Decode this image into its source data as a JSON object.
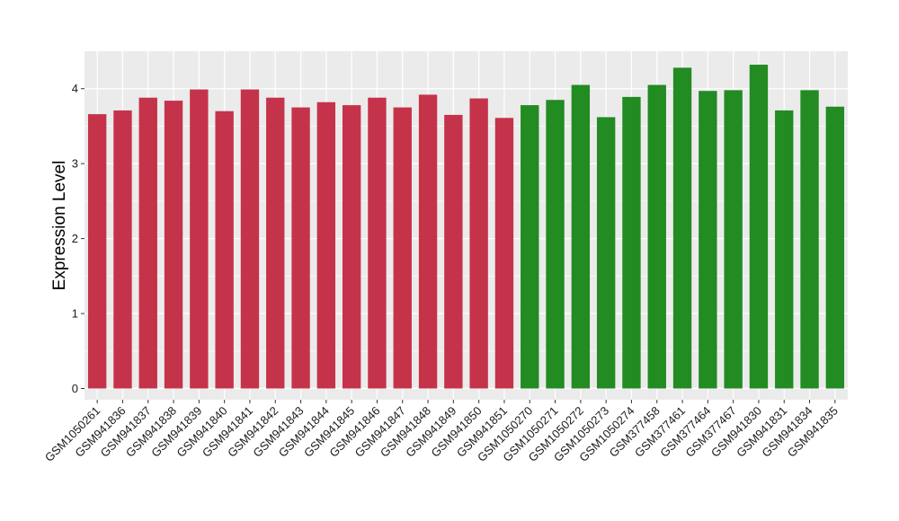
{
  "chart_data": {
    "type": "bar",
    "title": "",
    "xlabel": "",
    "ylabel": "Expression Level",
    "ylim": [
      -0.15,
      4.5
    ],
    "yticks": [
      0,
      1,
      2,
      3,
      4
    ],
    "grid": true,
    "panel_background": "#ebebeb",
    "grid_color": "#ffffff",
    "categories": [
      "GSM1050261",
      "GSM941836",
      "GSM941837",
      "GSM941838",
      "GSM941839",
      "GSM941840",
      "GSM941841",
      "GSM941842",
      "GSM941843",
      "GSM941844",
      "GSM941845",
      "GSM941846",
      "GSM941847",
      "GSM941848",
      "GSM941849",
      "GSM941850",
      "GSM941851",
      "GSM1050270",
      "GSM1050271",
      "GSM1050272",
      "GSM1050273",
      "GSM1050274",
      "GSM377458",
      "GSM377461",
      "GSM377464",
      "GSM377467",
      "GSM941830",
      "GSM941831",
      "GSM941834",
      "GSM941835"
    ],
    "values": [
      3.66,
      3.71,
      3.88,
      3.84,
      3.99,
      3.7,
      3.99,
      3.88,
      3.75,
      3.82,
      3.78,
      3.88,
      3.75,
      3.92,
      3.65,
      3.87,
      3.61,
      3.78,
      3.85,
      4.05,
      3.62,
      3.89,
      4.05,
      4.28,
      3.97,
      3.98,
      4.32,
      3.71,
      3.98,
      3.76
    ],
    "groups": [
      0,
      0,
      0,
      0,
      0,
      0,
      0,
      0,
      0,
      0,
      0,
      0,
      0,
      0,
      0,
      0,
      0,
      1,
      1,
      1,
      1,
      1,
      1,
      1,
      1,
      1,
      1,
      1,
      1,
      1
    ],
    "group_colors": [
      "#c5334a",
      "#228b22"
    ]
  }
}
